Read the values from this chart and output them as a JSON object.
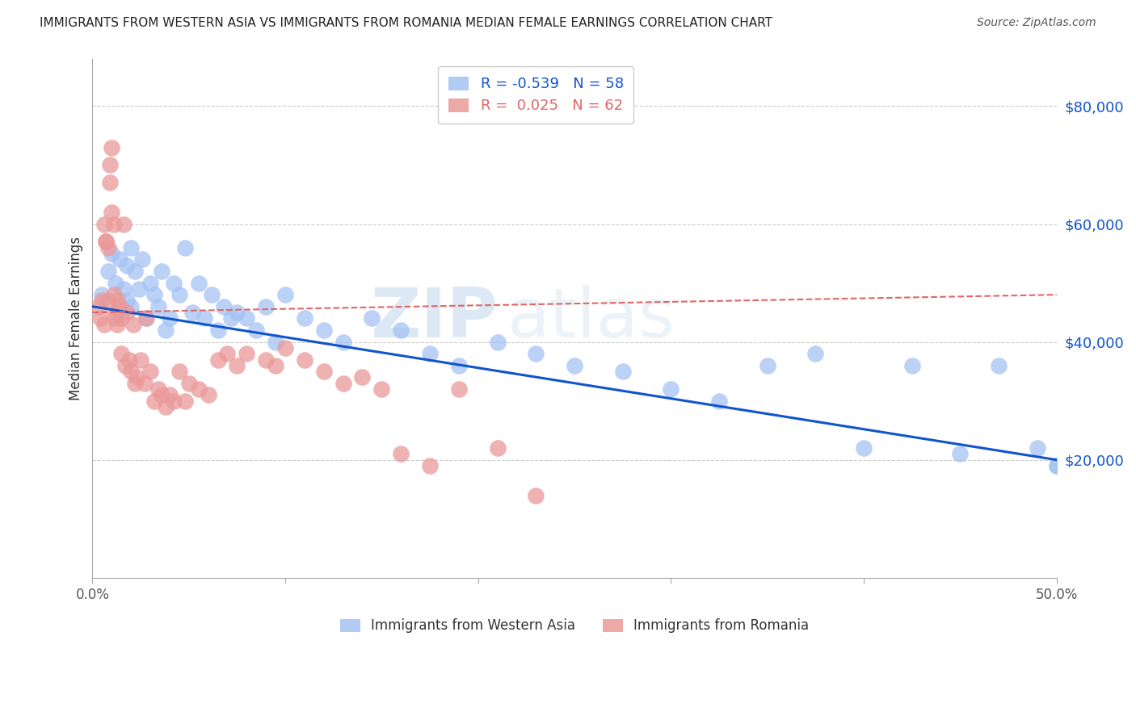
{
  "title": "IMMIGRANTS FROM WESTERN ASIA VS IMMIGRANTS FROM ROMANIA MEDIAN FEMALE EARNINGS CORRELATION CHART",
  "source": "Source: ZipAtlas.com",
  "ylabel": "Median Female Earnings",
  "y_ticks": [
    0,
    20000,
    40000,
    60000,
    80000
  ],
  "y_tick_labels": [
    "",
    "$20,000",
    "$40,000",
    "$60,000",
    "$80,000"
  ],
  "xmin": 0.0,
  "xmax": 0.5,
  "ymin": 0,
  "ymax": 88000,
  "blue_R": -0.539,
  "blue_N": 58,
  "pink_R": 0.025,
  "pink_N": 62,
  "blue_label": "Immigrants from Western Asia",
  "pink_label": "Immigrants from Romania",
  "blue_color": "#a4c2f4",
  "pink_color": "#ea9999",
  "blue_line_color": "#1155cc",
  "pink_line_color": "#e06666",
  "background_color": "#ffffff",
  "watermark_zip": "ZIP",
  "watermark_atlas": "atlas",
  "blue_x": [
    0.005,
    0.008,
    0.01,
    0.012,
    0.014,
    0.016,
    0.018,
    0.018,
    0.02,
    0.02,
    0.022,
    0.024,
    0.026,
    0.028,
    0.03,
    0.032,
    0.034,
    0.036,
    0.038,
    0.04,
    0.042,
    0.045,
    0.048,
    0.052,
    0.055,
    0.058,
    0.062,
    0.065,
    0.068,
    0.072,
    0.075,
    0.08,
    0.085,
    0.09,
    0.095,
    0.1,
    0.11,
    0.12,
    0.13,
    0.145,
    0.16,
    0.175,
    0.19,
    0.21,
    0.23,
    0.25,
    0.275,
    0.3,
    0.325,
    0.35,
    0.375,
    0.4,
    0.425,
    0.45,
    0.47,
    0.49,
    0.5,
    0.5
  ],
  "blue_y": [
    48000,
    52000,
    55000,
    50000,
    54000,
    49000,
    47000,
    53000,
    56000,
    46000,
    52000,
    49000,
    54000,
    44000,
    50000,
    48000,
    46000,
    52000,
    42000,
    44000,
    50000,
    48000,
    56000,
    45000,
    50000,
    44000,
    48000,
    42000,
    46000,
    44000,
    45000,
    44000,
    42000,
    46000,
    40000,
    48000,
    44000,
    42000,
    40000,
    44000,
    42000,
    38000,
    36000,
    40000,
    38000,
    36000,
    35000,
    32000,
    30000,
    36000,
    38000,
    22000,
    36000,
    21000,
    36000,
    22000,
    19000,
    19000
  ],
  "pink_x": [
    0.003,
    0.004,
    0.005,
    0.006,
    0.006,
    0.007,
    0.007,
    0.008,
    0.008,
    0.009,
    0.009,
    0.01,
    0.01,
    0.011,
    0.011,
    0.012,
    0.012,
    0.013,
    0.013,
    0.014,
    0.015,
    0.015,
    0.016,
    0.017,
    0.018,
    0.019,
    0.02,
    0.021,
    0.022,
    0.023,
    0.025,
    0.027,
    0.028,
    0.03,
    0.032,
    0.034,
    0.036,
    0.038,
    0.04,
    0.042,
    0.045,
    0.048,
    0.05,
    0.055,
    0.06,
    0.065,
    0.07,
    0.075,
    0.08,
    0.09,
    0.095,
    0.1,
    0.11,
    0.12,
    0.13,
    0.14,
    0.15,
    0.16,
    0.175,
    0.19,
    0.21,
    0.23
  ],
  "pink_y": [
    46000,
    44000,
    47000,
    43000,
    60000,
    57000,
    57000,
    56000,
    47000,
    67000,
    70000,
    73000,
    62000,
    60000,
    48000,
    45000,
    44000,
    47000,
    43000,
    46000,
    44000,
    38000,
    60000,
    36000,
    45000,
    37000,
    35000,
    43000,
    33000,
    34000,
    37000,
    33000,
    44000,
    35000,
    30000,
    32000,
    31000,
    29000,
    31000,
    30000,
    35000,
    30000,
    33000,
    32000,
    31000,
    37000,
    38000,
    36000,
    38000,
    37000,
    36000,
    39000,
    37000,
    35000,
    33000,
    34000,
    32000,
    21000,
    19000,
    32000,
    22000,
    14000
  ]
}
